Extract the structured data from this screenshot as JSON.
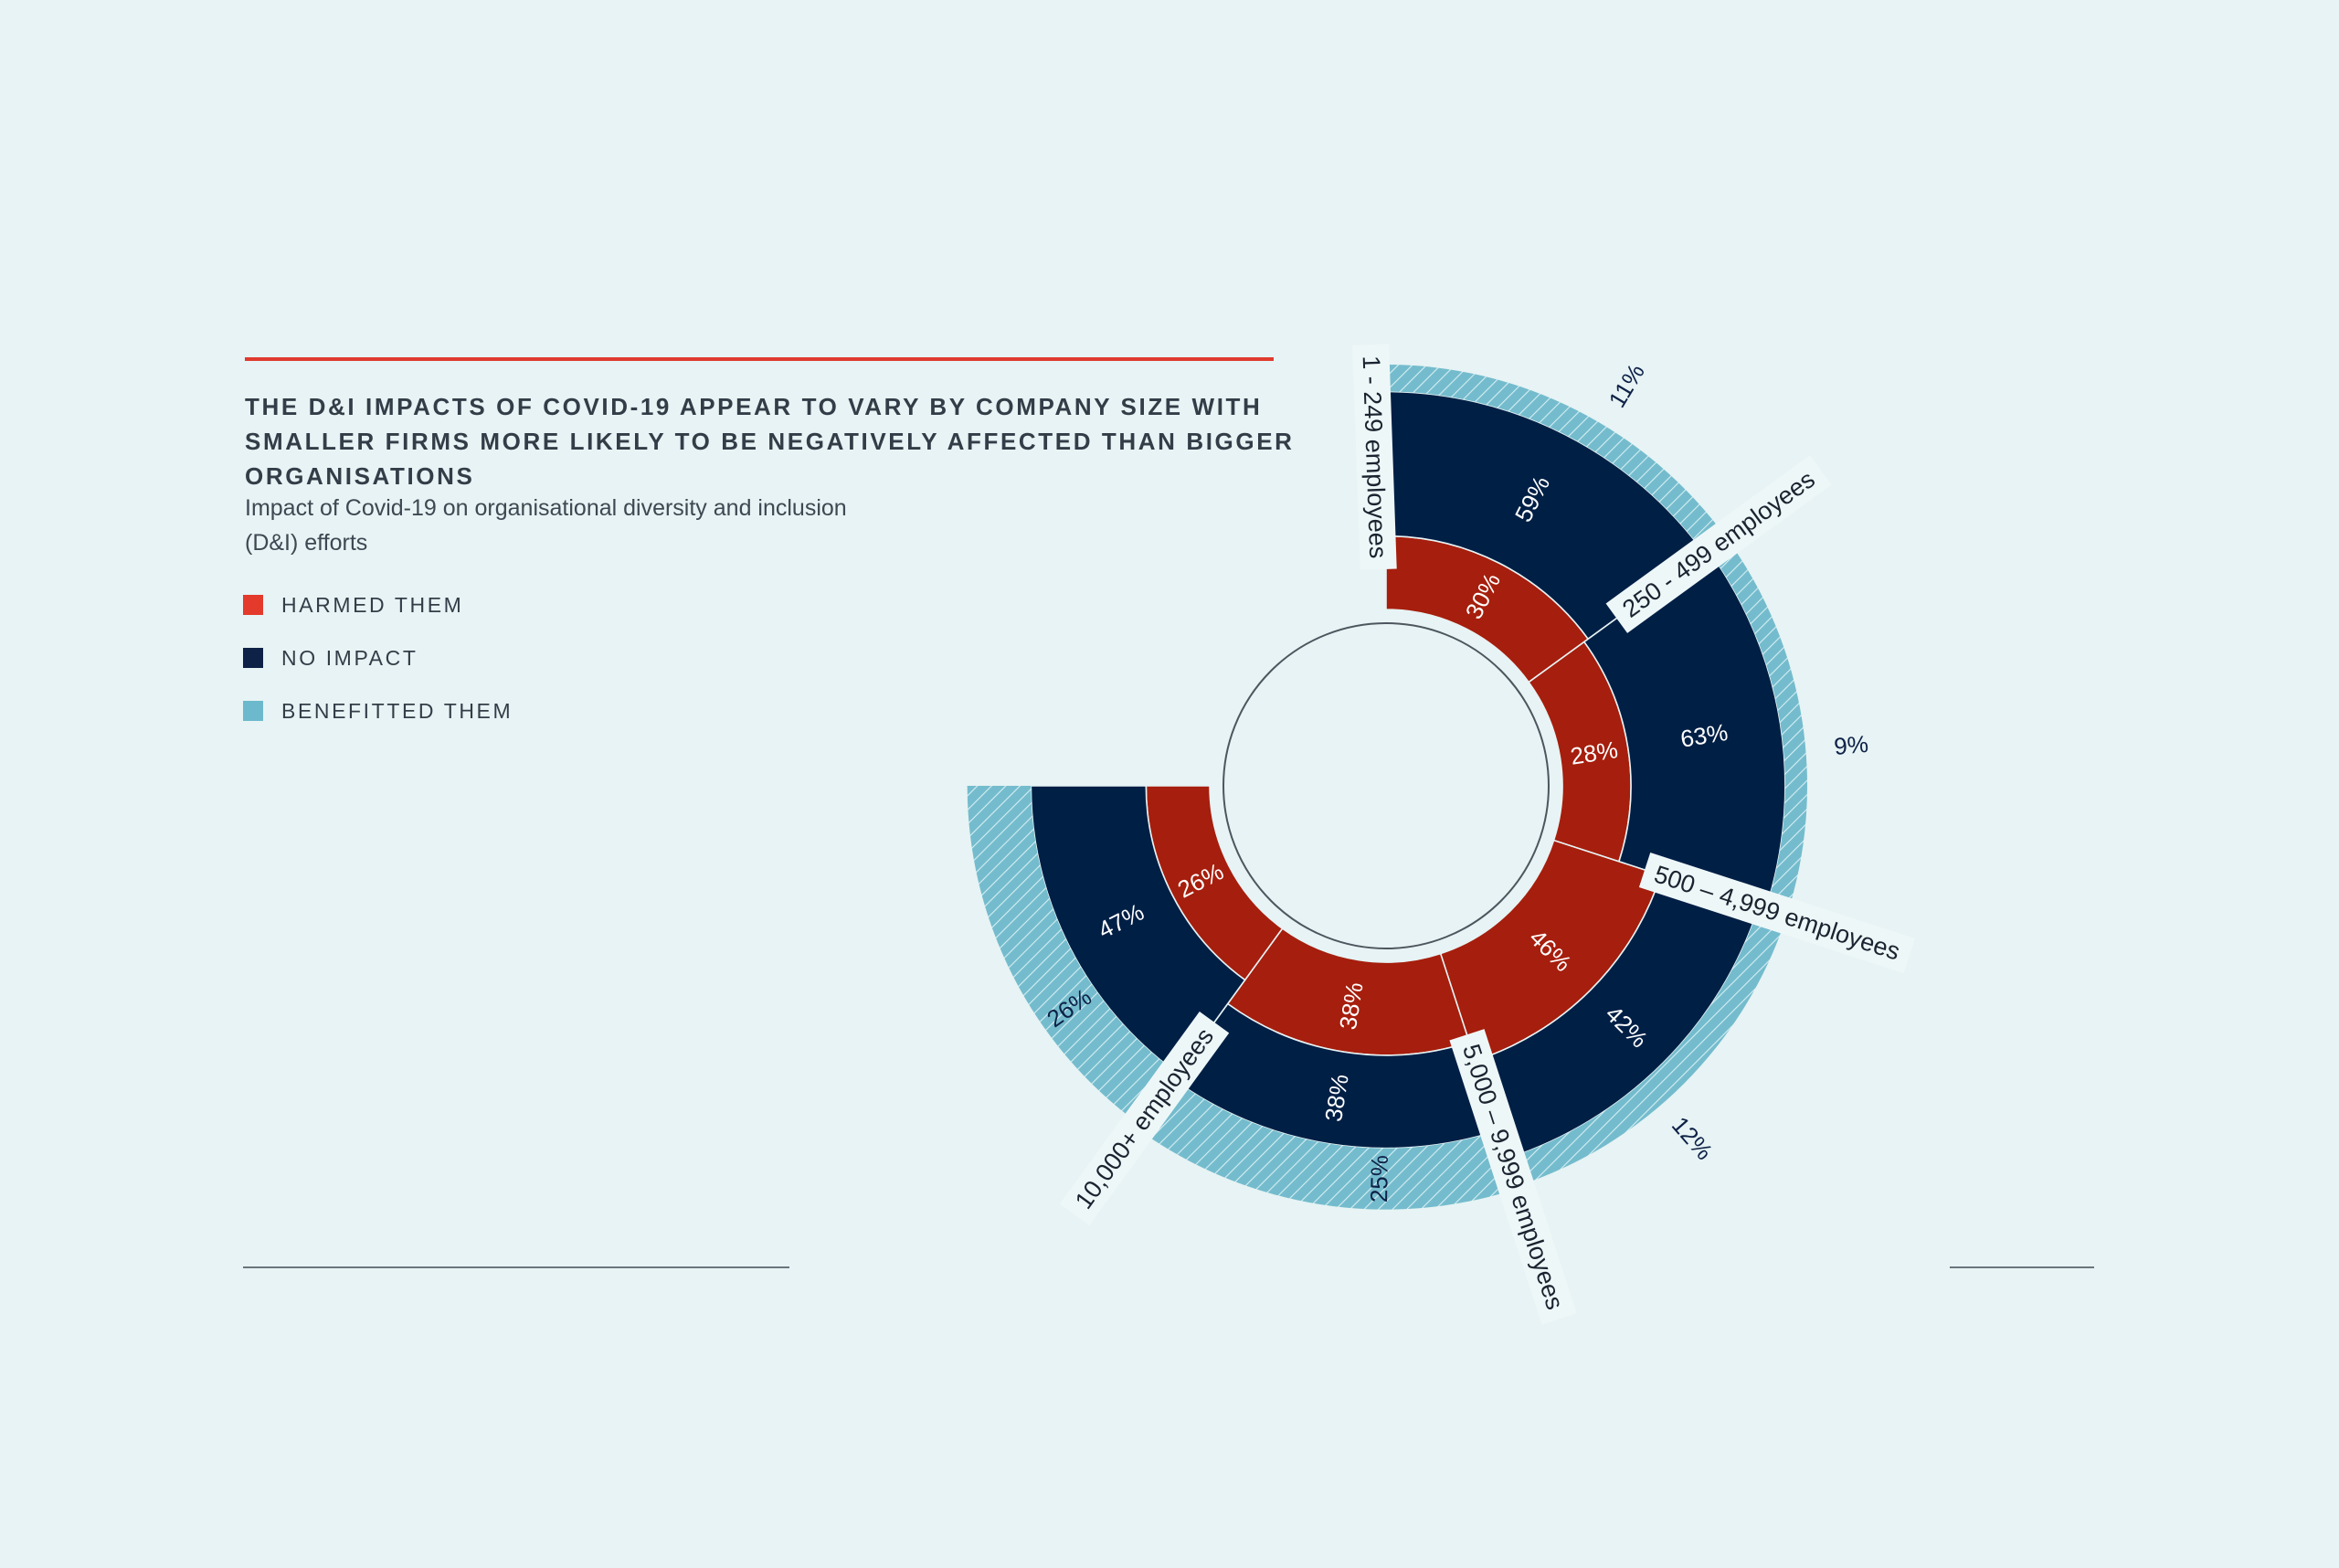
{
  "title": "THE D&I IMPACTS OF COVID-19 APPEAR TO VARY BY COMPANY SIZE WITH SMALLER FIRMS MORE LIKELY TO BE NEGATIVELY AFFECTED THAN BIGGER ORGANISATIONS",
  "subtitle": "Impact of Covid-19 on organisational diversity and inclusion (D&I) efforts",
  "legend": [
    {
      "label": "HARMED THEM",
      "color": "#e33a2c"
    },
    {
      "label": "NO IMPACT",
      "color": "#0e2147"
    },
    {
      "label": "BENEFITTED THEM",
      "color": "#6cb9cd"
    }
  ],
  "colors": {
    "harmed": "#a61e0d",
    "no_impact": "#001f45",
    "benefitted": "#74bccd",
    "background": "#e7f3f4",
    "accent_rule": "#e03a2f"
  },
  "chart_data": {
    "type": "radial-stacked-bar",
    "categories": [
      "1 - 249 employees",
      "250 - 499 employees",
      "500 – 4,999 employees",
      "5,000 – 9,999 employees",
      "10,000+ employees"
    ],
    "series": [
      {
        "name": "HARMED THEM",
        "values": [
          30,
          28,
          46,
          38,
          26
        ],
        "labels": [
          "30%",
          "28%",
          "46%",
          "38%",
          "26%"
        ]
      },
      {
        "name": "NO IMPACT",
        "values": [
          59,
          63,
          42,
          38,
          47
        ],
        "labels": [
          "59%",
          "63%",
          "42%",
          "38%",
          "47%"
        ]
      },
      {
        "name": "BENEFITTED THEM",
        "values": [
          11,
          9,
          12,
          25,
          26
        ],
        "labels": [
          "11%",
          "9%",
          "12%",
          "25%",
          "26%"
        ]
      }
    ]
  }
}
